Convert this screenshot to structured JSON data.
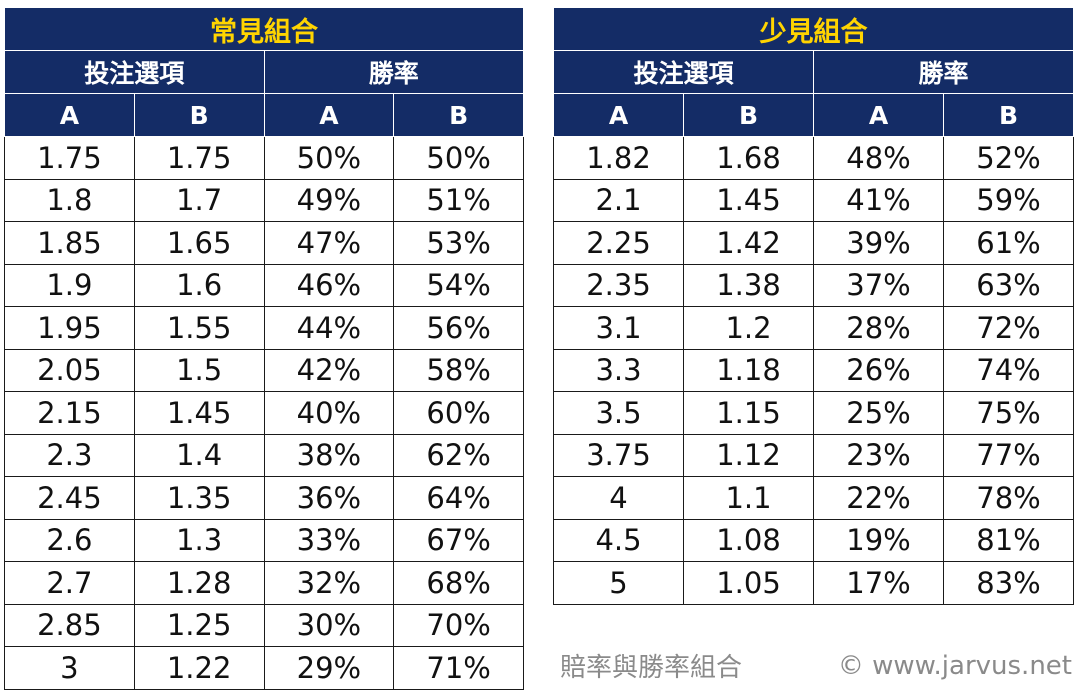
{
  "colors": {
    "header_bg": "#142c66",
    "title_text": "#ffd400",
    "header_text": "#ffffff",
    "footer_text": "#8a8a8a"
  },
  "tables": [
    {
      "title": "常見組合",
      "group_headers": [
        "投注選項",
        "勝率"
      ],
      "column_headers": [
        "A",
        "B",
        "A",
        "B"
      ],
      "rows": [
        [
          "1.75",
          "1.75",
          "50%",
          "50%"
        ],
        [
          "1.8",
          "1.7",
          "49%",
          "51%"
        ],
        [
          "1.85",
          "1.65",
          "47%",
          "53%"
        ],
        [
          "1.9",
          "1.6",
          "46%",
          "54%"
        ],
        [
          "1.95",
          "1.55",
          "44%",
          "56%"
        ],
        [
          "2.05",
          "1.5",
          "42%",
          "58%"
        ],
        [
          "2.15",
          "1.45",
          "40%",
          "60%"
        ],
        [
          "2.3",
          "1.4",
          "38%",
          "62%"
        ],
        [
          "2.45",
          "1.35",
          "36%",
          "64%"
        ],
        [
          "2.6",
          "1.3",
          "33%",
          "67%"
        ],
        [
          "2.7",
          "1.28",
          "32%",
          "68%"
        ],
        [
          "2.85",
          "1.25",
          "30%",
          "70%"
        ],
        [
          "3",
          "1.22",
          "29%",
          "71%"
        ]
      ]
    },
    {
      "title": "少見組合",
      "group_headers": [
        "投注選項",
        "勝率"
      ],
      "column_headers": [
        "A",
        "B",
        "A",
        "B"
      ],
      "rows": [
        [
          "1.82",
          "1.68",
          "48%",
          "52%"
        ],
        [
          "2.1",
          "1.45",
          "41%",
          "59%"
        ],
        [
          "2.25",
          "1.42",
          "39%",
          "61%"
        ],
        [
          "2.35",
          "1.38",
          "37%",
          "63%"
        ],
        [
          "3.1",
          "1.2",
          "28%",
          "72%"
        ],
        [
          "3.3",
          "1.18",
          "26%",
          "74%"
        ],
        [
          "3.5",
          "1.15",
          "25%",
          "75%"
        ],
        [
          "3.75",
          "1.12",
          "23%",
          "77%"
        ],
        [
          "4",
          "1.1",
          "22%",
          "78%"
        ],
        [
          "4.5",
          "1.08",
          "19%",
          "81%"
        ],
        [
          "5",
          "1.05",
          "17%",
          "83%"
        ]
      ]
    }
  ],
  "footer": {
    "caption": "賠率與勝率組合",
    "copyright": "© www.jarvus.net"
  }
}
